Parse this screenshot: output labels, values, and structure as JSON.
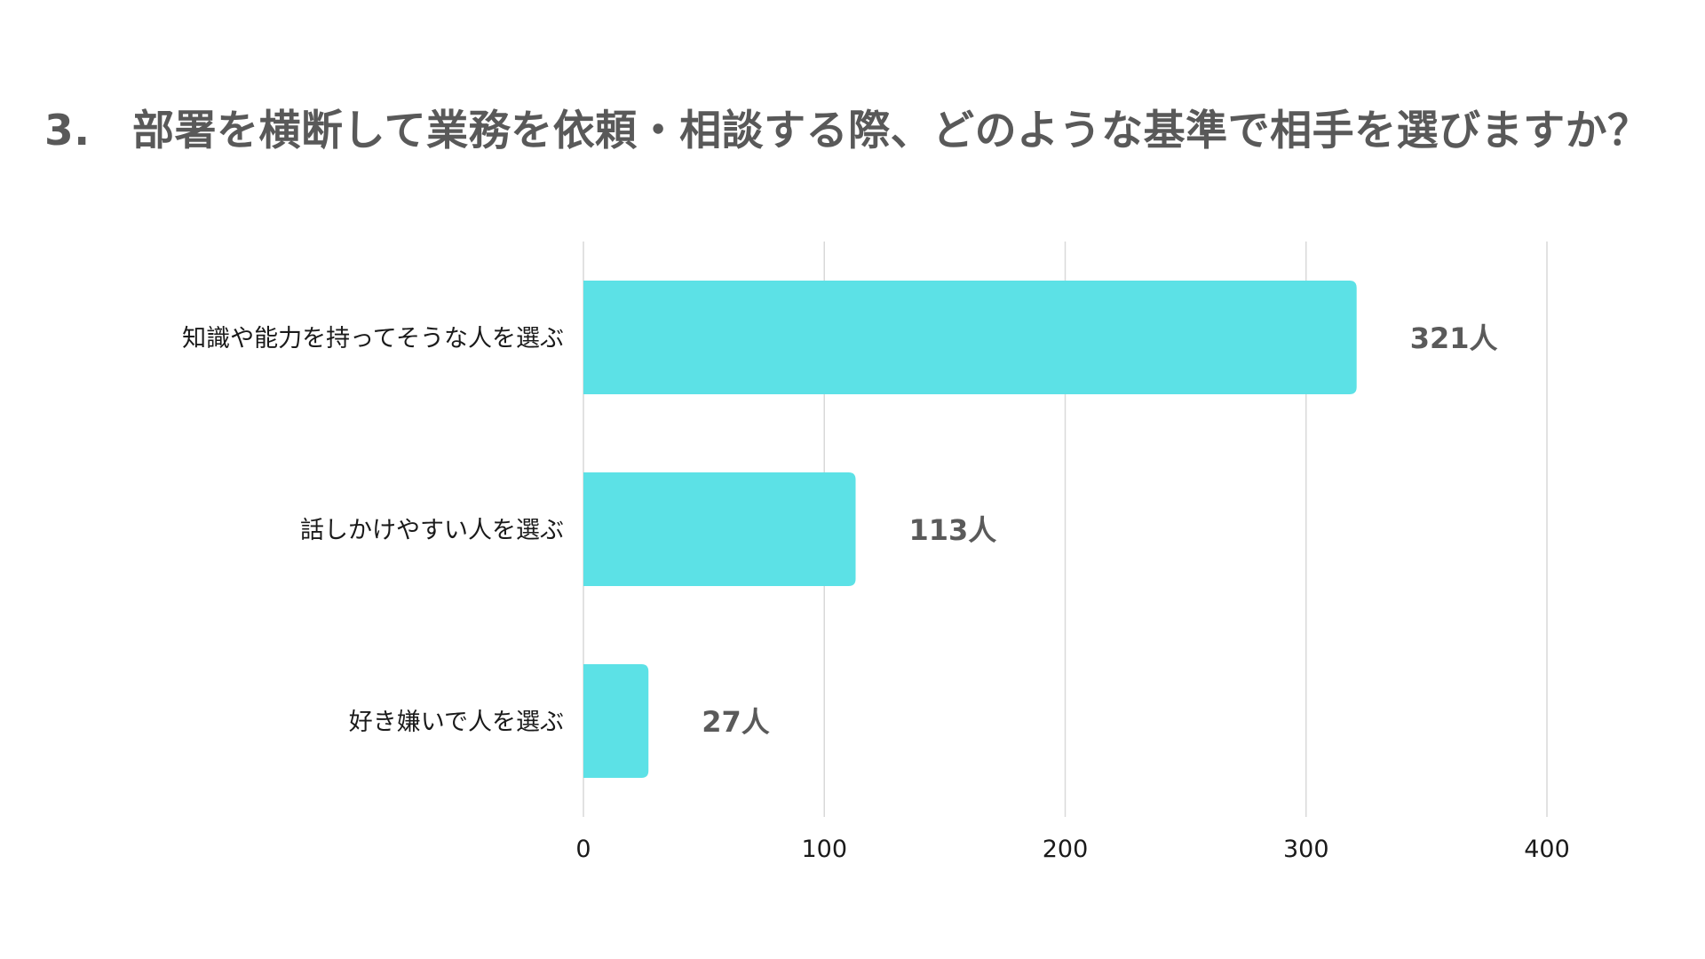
{
  "title": "3.　部署を横断して業務を依頼・相談する際、どのような基準で相手を選びますか？",
  "chart_data": {
    "type": "bar",
    "orientation": "horizontal",
    "categories": [
      "知識や能力を持ってそうな人を選ぶ",
      "話しかけやすい人を選ぶ",
      "好き嫌いで人を選ぶ"
    ],
    "values": [
      321,
      113,
      27
    ],
    "data_labels": [
      "321人",
      "113人",
      "27人"
    ],
    "xlim": [
      0,
      400
    ],
    "xticks": [
      0,
      100,
      200,
      300,
      400
    ],
    "xtick_labels": [
      "0",
      "100",
      "200",
      "300",
      "400"
    ],
    "grid": true,
    "legend": "none",
    "colors": {
      "bar": "#5ce1e6",
      "grid": "#d9d9d9",
      "title": "#595959",
      "data_label": "#5a5a5a",
      "axis_text": "#1a1a1a"
    }
  }
}
